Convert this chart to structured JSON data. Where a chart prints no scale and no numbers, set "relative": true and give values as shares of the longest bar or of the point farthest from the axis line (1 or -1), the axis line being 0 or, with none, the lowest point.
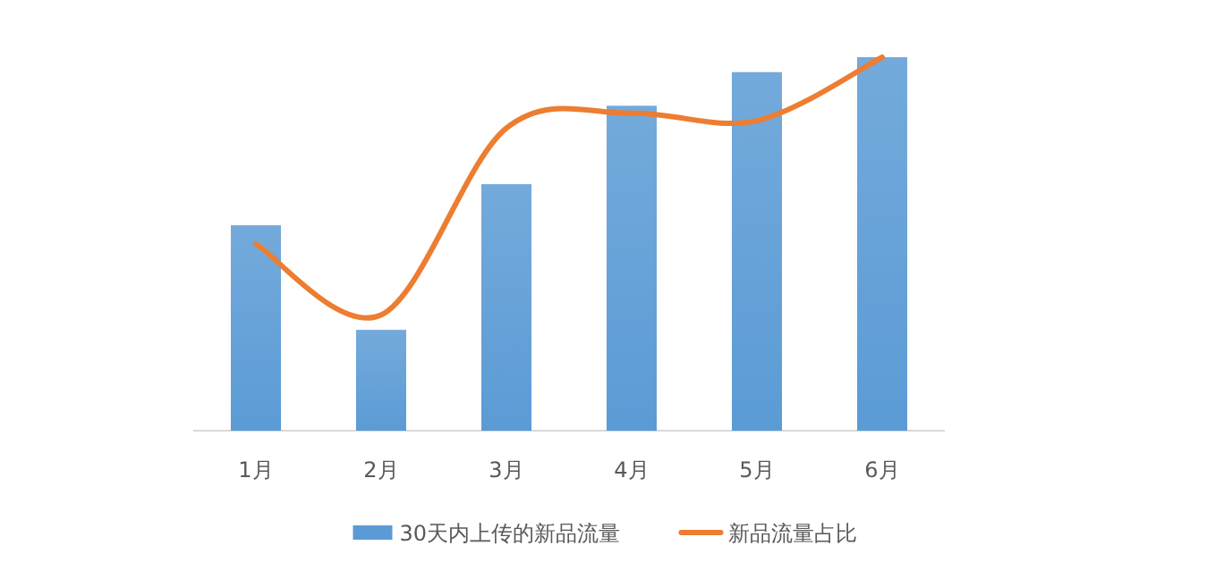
{
  "chart_data": {
    "type": "bar",
    "relative": true,
    "categories": [
      "1月",
      "2月",
      "3月",
      "4月",
      "5月",
      "6月"
    ],
    "series": [
      {
        "name": "30天内上传的新品流量",
        "color": "#5b9bd5",
        "values": [
          0.55,
          0.27,
          0.66,
          0.87,
          0.96,
          1
        ]
      },
      {
        "name": "新品流量占比",
        "type": "line",
        "color": "#ed7d31",
        "values": [
          0.5,
          0.31,
          0.81,
          0.85,
          0.83,
          1
        ]
      }
    ],
    "legend": "bottom"
  }
}
